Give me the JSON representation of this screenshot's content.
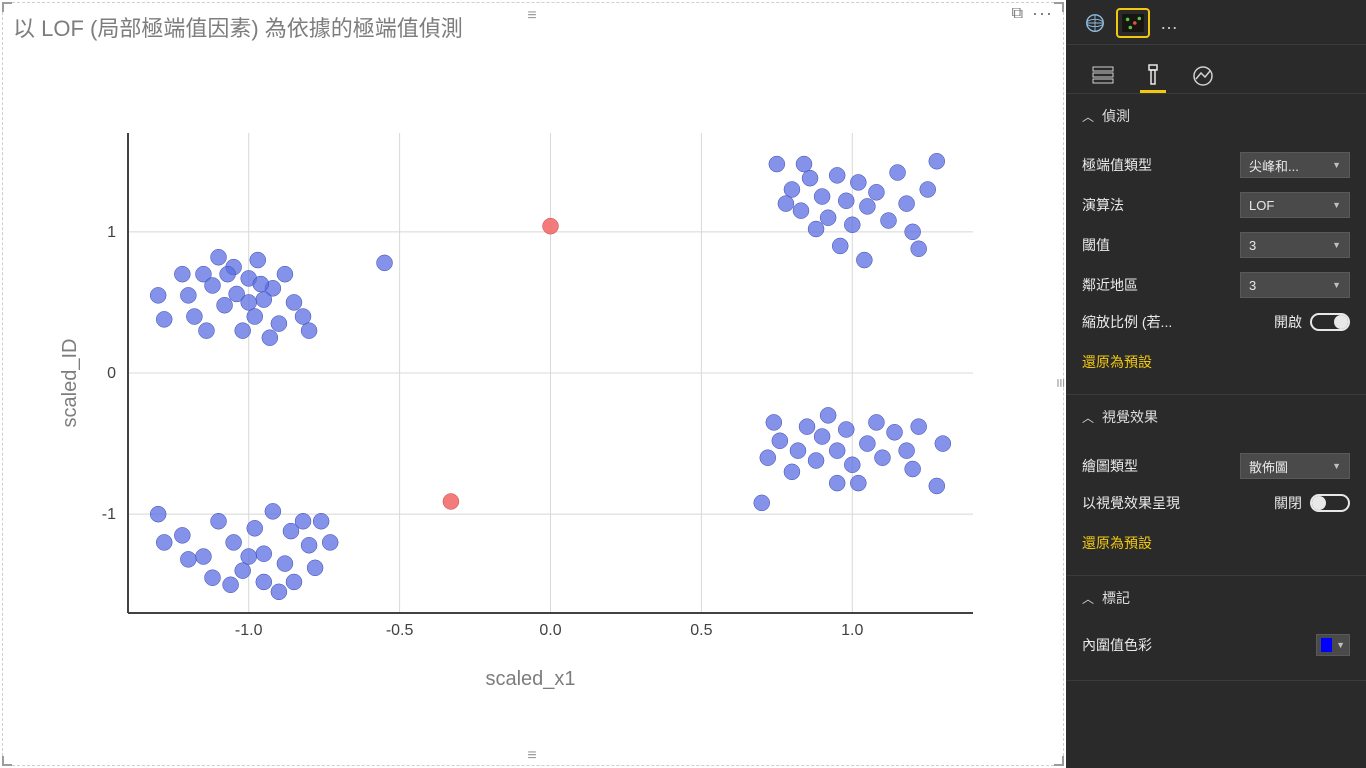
{
  "viz": {
    "title": "以 LOF (局部極端值因素) 為依據的極端值偵測",
    "chart": {
      "type": "scatter",
      "xlabel": "scaled_x1",
      "ylabel": "scaled_ID",
      "xlim": [
        -1.4,
        1.4
      ],
      "ylim": [
        -1.7,
        1.7
      ],
      "xticks": [
        -1.0,
        -0.5,
        0.0,
        0.5,
        1.0
      ],
      "yticks": [
        -1,
        0,
        1
      ],
      "background_color": "#ffffff",
      "grid_color": "#d8d8d8",
      "axis_color": "#424242",
      "point_radius": 8,
      "point_opacity": 0.75,
      "inlier_color": "#5b6ee1",
      "outlier_color": "#f26d6d",
      "inliers": [
        [
          -1.15,
          0.7
        ],
        [
          -1.1,
          0.82
        ],
        [
          -1.05,
          0.75
        ],
        [
          -1.0,
          0.67
        ],
        [
          -0.97,
          0.8
        ],
        [
          -0.92,
          0.6
        ],
        [
          -1.2,
          0.55
        ],
        [
          -1.08,
          0.48
        ],
        [
          -0.98,
          0.4
        ],
        [
          -0.9,
          0.35
        ],
        [
          -0.85,
          0.5
        ],
        [
          -0.8,
          0.3
        ],
        [
          -1.12,
          0.62
        ],
        [
          -1.02,
          0.3
        ],
        [
          -0.95,
          0.52
        ],
        [
          -0.88,
          0.7
        ],
        [
          -1.18,
          0.4
        ],
        [
          -1.04,
          0.56
        ],
        [
          -0.82,
          0.4
        ],
        [
          -0.93,
          0.25
        ],
        [
          -1.0,
          0.5
        ],
        [
          -1.07,
          0.7
        ],
        [
          -0.96,
          0.63
        ],
        [
          -1.14,
          0.3
        ],
        [
          -1.22,
          0.7
        ],
        [
          -1.28,
          0.38
        ],
        [
          -1.3,
          0.55
        ],
        [
          -0.55,
          0.78
        ],
        [
          -1.3,
          -1.0
        ],
        [
          -1.22,
          -1.15
        ],
        [
          -1.15,
          -1.3
        ],
        [
          -1.1,
          -1.05
        ],
        [
          -1.05,
          -1.2
        ],
        [
          -1.02,
          -1.4
        ],
        [
          -0.98,
          -1.1
        ],
        [
          -0.95,
          -1.28
        ],
        [
          -0.92,
          -0.98
        ],
        [
          -0.88,
          -1.35
        ],
        [
          -0.86,
          -1.12
        ],
        [
          -0.82,
          -1.05
        ],
        [
          -0.8,
          -1.22
        ],
        [
          -0.85,
          -1.48
        ],
        [
          -0.9,
          -1.55
        ],
        [
          -0.78,
          -1.38
        ],
        [
          -0.95,
          -1.48
        ],
        [
          -1.06,
          -1.5
        ],
        [
          -1.12,
          -1.45
        ],
        [
          -1.2,
          -1.32
        ],
        [
          -0.73,
          -1.2
        ],
        [
          -0.76,
          -1.05
        ],
        [
          -1.0,
          -1.3
        ],
        [
          -1.28,
          -1.2
        ],
        [
          0.75,
          1.48
        ],
        [
          0.8,
          1.3
        ],
        [
          0.83,
          1.15
        ],
        [
          0.86,
          1.38
        ],
        [
          0.9,
          1.25
        ],
        [
          0.92,
          1.1
        ],
        [
          0.95,
          1.4
        ],
        [
          0.98,
          1.22
        ],
        [
          1.0,
          1.05
        ],
        [
          1.02,
          1.35
        ],
        [
          1.05,
          1.18
        ],
        [
          1.08,
          1.28
        ],
        [
          1.12,
          1.08
        ],
        [
          1.15,
          1.42
        ],
        [
          1.18,
          1.2
        ],
        [
          1.2,
          1.0
        ],
        [
          1.25,
          1.3
        ],
        [
          1.28,
          1.5
        ],
        [
          1.04,
          0.8
        ],
        [
          0.96,
          0.9
        ],
        [
          0.88,
          1.02
        ],
        [
          1.22,
          0.88
        ],
        [
          0.78,
          1.2
        ],
        [
          0.84,
          1.48
        ],
        [
          0.72,
          -0.6
        ],
        [
          0.76,
          -0.48
        ],
        [
          0.8,
          -0.7
        ],
        [
          0.82,
          -0.55
        ],
        [
          0.85,
          -0.38
        ],
        [
          0.88,
          -0.62
        ],
        [
          0.9,
          -0.45
        ],
        [
          0.92,
          -0.3
        ],
        [
          0.95,
          -0.55
        ],
        [
          0.98,
          -0.4
        ],
        [
          1.0,
          -0.65
        ],
        [
          1.02,
          -0.78
        ],
        [
          1.05,
          -0.5
        ],
        [
          1.08,
          -0.35
        ],
        [
          1.1,
          -0.6
        ],
        [
          1.14,
          -0.42
        ],
        [
          1.18,
          -0.55
        ],
        [
          1.22,
          -0.38
        ],
        [
          1.28,
          -0.8
        ],
        [
          1.2,
          -0.68
        ],
        [
          0.95,
          -0.78
        ],
        [
          1.3,
          -0.5
        ],
        [
          0.74,
          -0.35
        ],
        [
          0.7,
          -0.92
        ]
      ],
      "outliers": [
        [
          0.0,
          1.04
        ],
        [
          -0.33,
          -0.91
        ]
      ]
    }
  },
  "panel": {
    "tabs": {
      "fields_active": false,
      "format_active": true
    },
    "sections": {
      "detection": {
        "header": "偵測",
        "outlier_type": {
          "label": "極端值類型",
          "value": "尖峰和..."
        },
        "algorithm": {
          "label": "演算法",
          "value": "LOF"
        },
        "threshold": {
          "label": "閾值",
          "value": "3"
        },
        "neighbors": {
          "label": "鄰近地區",
          "value": "3"
        },
        "scale": {
          "label": "縮放比例 (若...",
          "state_label": "開啟",
          "on": true
        },
        "reset": "還原為預設"
      },
      "visual": {
        "header": "視覺效果",
        "plot_type": {
          "label": "繪圖類型",
          "value": "散佈圖"
        },
        "as_visual": {
          "label": "以視覺效果呈現",
          "state_label": "關閉",
          "on": false
        },
        "reset": "還原為預設"
      },
      "markers": {
        "header": "標記",
        "inlier_color": {
          "label": "內圍值色彩",
          "value": "#0000ff"
        }
      }
    }
  }
}
